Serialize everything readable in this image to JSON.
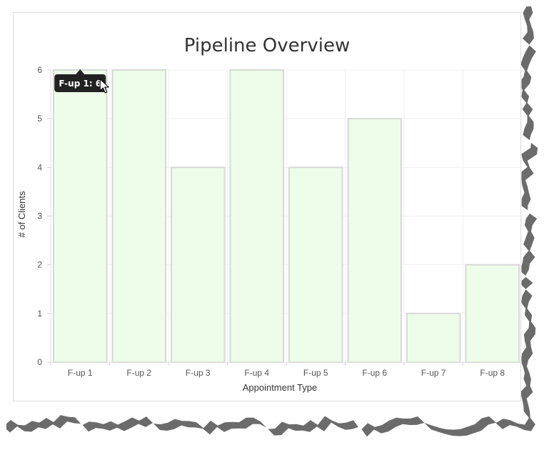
{
  "chart_data": {
    "type": "bar",
    "title": "Pipeline Overview",
    "xlabel": "Appointment Type",
    "ylabel": "# of Clients",
    "categories": [
      "F-up 1",
      "F-up 2",
      "F-up 3",
      "F-up 4",
      "F-up 5",
      "F-up 6",
      "F-up 7",
      "F-up 8"
    ],
    "values": [
      6,
      6,
      4,
      6,
      4,
      5,
      1,
      2
    ],
    "ylim": [
      0,
      6
    ],
    "yticks": [
      "0",
      "1",
      "2",
      "3",
      "4",
      "5",
      "6"
    ],
    "grid": true,
    "legend": "none",
    "bar_fill": "#edfde9",
    "bar_stroke": "#d8d8d8"
  },
  "tooltip": {
    "text": "F-up 1: 6",
    "category_index": 0,
    "background": "#222222"
  }
}
